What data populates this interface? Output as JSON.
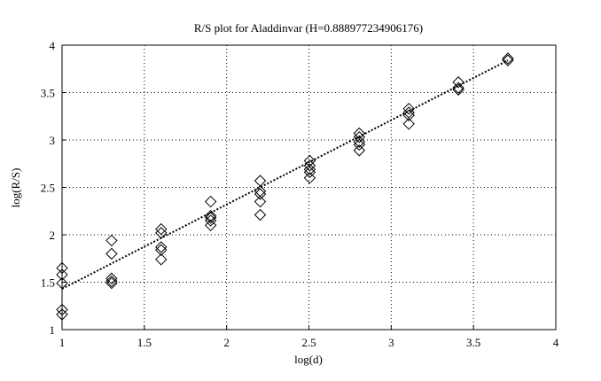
{
  "chart_data": {
    "type": "scatter",
    "title": "R/S plot for Aladdinvar (H=0.888977234906176)",
    "x_label": "log(d)",
    "y_label": "log(R/S)",
    "xlim": [
      1,
      4
    ],
    "ylim": [
      1,
      4
    ],
    "xticks": [
      1,
      {
        "value": 1.5,
        "label": "1.5"
      },
      2,
      {
        "value": 2.5,
        "label": "2.5"
      },
      3,
      {
        "value": 3.5,
        "label": "3.5"
      },
      4
    ],
    "yticks": [
      1,
      {
        "value": 1.5,
        "label": "1.5"
      },
      2,
      {
        "value": 2.5,
        "label": "2.5"
      },
      3,
      {
        "value": 3.5,
        "label": "3.5"
      },
      4
    ],
    "grid": true,
    "color": "#000000",
    "series": [
      {
        "color": "#000000",
        "x": [
          1,
          1,
          1,
          1,
          1,
          1.301,
          1.301,
          1.301,
          1.301,
          1.301,
          1.602,
          1.602,
          1.602,
          1.602,
          1.602,
          1.903,
          1.903,
          1.903,
          1.903,
          1.903,
          2.204,
          2.204,
          2.204,
          2.204,
          2.204,
          2.505,
          2.505,
          2.505,
          2.505,
          2.505,
          2.806,
          2.806,
          2.806,
          2.806,
          2.806,
          3.107,
          3.107,
          3.107,
          3.107,
          3.408,
          3.408,
          3.408,
          3.709,
          3.709
        ],
        "values": [
          1.65,
          1.58,
          1.49,
          1.21,
          1.16,
          1.94,
          1.8,
          1.54,
          1.51,
          1.49,
          2.06,
          2.02,
          1.87,
          1.84,
          1.74,
          2.35,
          2.2,
          2.18,
          2.15,
          2.1,
          2.57,
          2.46,
          2.43,
          2.35,
          2.21,
          2.78,
          2.73,
          2.69,
          2.66,
          2.6,
          3.07,
          3.03,
          2.98,
          2.95,
          2.89,
          3.33,
          3.29,
          3.26,
          3.17,
          3.61,
          3.55,
          3.53,
          3.86,
          3.84
        ]
      }
    ],
    "fit": {
      "x": [
        1,
        3.709
      ],
      "values": [
        1.43,
        3.84
      ]
    }
  }
}
